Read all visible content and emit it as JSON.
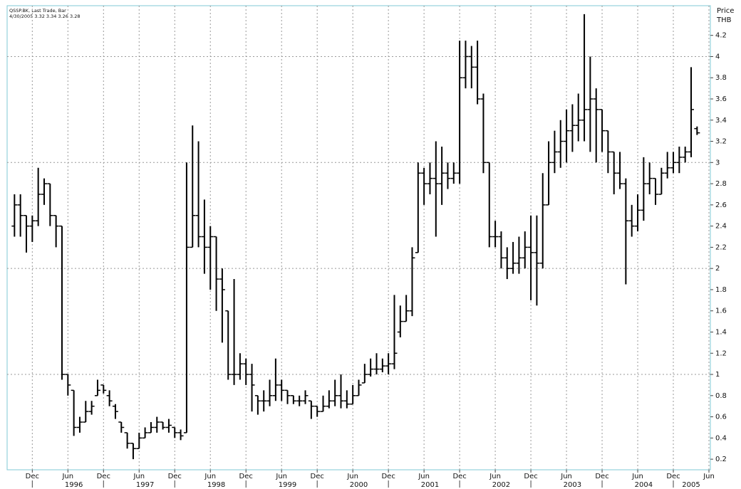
{
  "chart_data": {
    "type": "ohlc",
    "title": "QSSP.BK, Last Trade, Bar",
    "subtitle": "4/30/2005 3.32 3.34 3.26 3.28",
    "ylabel": "Price",
    "yunit": "THB",
    "color": "#000000",
    "grid": true,
    "x": [
      "1995-09",
      "1995-10",
      "1995-11",
      "1995-12",
      "1996-01",
      "1996-02",
      "1996-03",
      "1996-04",
      "1996-05",
      "1996-06",
      "1996-07",
      "1996-08",
      "1996-09",
      "1996-10",
      "1996-11",
      "1996-12",
      "1997-01",
      "1997-02",
      "1997-03",
      "1997-04",
      "1997-05",
      "1997-06",
      "1997-07",
      "1997-08",
      "1997-09",
      "1997-10",
      "1997-11",
      "1997-12",
      "1998-01",
      "1998-02",
      "1998-03",
      "1998-04",
      "1998-05",
      "1998-06",
      "1998-07",
      "1998-08",
      "1998-09",
      "1998-10",
      "1998-11",
      "1998-12",
      "1999-01",
      "1999-02",
      "1999-03",
      "1999-04",
      "1999-05",
      "1999-06",
      "1999-07",
      "1999-08",
      "1999-09",
      "1999-10",
      "1999-11",
      "1999-12",
      "2000-01",
      "2000-02",
      "2000-03",
      "2000-04",
      "2000-05",
      "2000-06",
      "2000-07",
      "2000-08",
      "2000-09",
      "2000-10",
      "2000-11",
      "2000-12",
      "2001-01",
      "2001-02",
      "2001-03",
      "2001-04",
      "2001-05",
      "2001-06",
      "2001-07",
      "2001-08",
      "2001-09",
      "2001-10",
      "2001-11",
      "2001-12",
      "2002-01",
      "2002-02",
      "2002-03",
      "2002-04",
      "2002-05",
      "2002-06",
      "2002-07",
      "2002-08",
      "2002-09",
      "2002-10",
      "2002-11",
      "2002-12",
      "2003-01",
      "2003-02",
      "2003-03",
      "2003-04",
      "2003-05",
      "2003-06",
      "2003-07",
      "2003-08",
      "2003-09",
      "2003-10",
      "2003-11",
      "2003-12",
      "2004-01",
      "2004-02",
      "2004-03",
      "2004-04",
      "2004-05",
      "2004-06",
      "2004-07",
      "2004-08",
      "2004-09",
      "2004-10",
      "2004-11",
      "2004-12",
      "2005-01",
      "2005-02",
      "2005-03",
      "2005-04"
    ],
    "open": [
      2.4,
      2.6,
      2.5,
      2.4,
      2.45,
      2.7,
      2.8,
      2.5,
      2.4,
      1.0,
      0.85,
      0.5,
      0.55,
      0.65,
      0.8,
      0.9,
      0.8,
      0.7,
      0.55,
      0.45,
      0.35,
      0.3,
      0.4,
      0.45,
      0.5,
      0.55,
      0.5,
      0.5,
      0.45,
      0.45,
      2.2,
      2.5,
      2.3,
      2.2,
      2.3,
      1.9,
      1.6,
      1.0,
      1.0,
      1.1,
      1.0,
      0.8,
      0.75,
      0.75,
      0.8,
      0.9,
      0.85,
      0.8,
      0.75,
      0.75,
      0.75,
      0.7,
      0.65,
      0.7,
      0.75,
      0.8,
      0.75,
      0.72,
      0.8,
      0.92,
      1.0,
      1.05,
      1.05,
      1.08,
      1.1,
      1.4,
      1.5,
      1.6,
      2.15,
      2.9,
      2.8,
      2.85,
      2.8,
      2.9,
      2.85,
      2.9,
      3.8,
      4.0,
      3.9,
      3.6,
      3.0,
      2.3,
      2.3,
      2.1,
      2.0,
      2.05,
      2.1,
      2.2,
      2.15,
      2.05,
      2.6,
      3.0,
      3.1,
      3.2,
      3.3,
      3.35,
      3.4,
      3.5,
      3.6,
      3.5,
      3.3,
      3.1,
      2.9,
      2.8,
      2.45,
      2.4,
      2.55,
      2.8,
      2.85,
      2.7,
      2.9,
      2.95,
      3.0,
      3.05,
      3.1,
      3.32
    ],
    "high": [
      2.7,
      2.7,
      2.5,
      2.5,
      2.95,
      2.85,
      2.8,
      2.5,
      2.4,
      1.0,
      0.85,
      0.6,
      0.75,
      0.75,
      0.95,
      0.9,
      0.85,
      0.72,
      0.55,
      0.45,
      0.35,
      0.45,
      0.5,
      0.55,
      0.6,
      0.55,
      0.58,
      0.5,
      0.48,
      3.0,
      3.35,
      3.2,
      2.65,
      2.4,
      2.3,
      2.0,
      1.6,
      1.9,
      1.2,
      1.15,
      1.1,
      0.8,
      0.85,
      0.95,
      1.15,
      0.95,
      0.85,
      0.8,
      0.8,
      0.85,
      0.75,
      0.7,
      0.8,
      0.85,
      0.95,
      1.0,
      0.85,
      0.9,
      0.95,
      1.1,
      1.15,
      1.2,
      1.15,
      1.2,
      1.75,
      1.65,
      1.75,
      2.2,
      3.0,
      2.95,
      3.0,
      3.2,
      3.15,
      3.0,
      3.0,
      4.15,
      4.15,
      4.1,
      4.15,
      3.65,
      3.0,
      2.45,
      2.35,
      2.2,
      2.25,
      2.3,
      2.35,
      2.5,
      2.5,
      2.9,
      3.2,
      3.3,
      3.4,
      3.5,
      3.55,
      3.65,
      4.4,
      4.0,
      3.7,
      3.5,
      3.3,
      3.1,
      3.1,
      2.85,
      2.6,
      2.7,
      3.05,
      3.0,
      2.85,
      2.95,
      3.1,
      3.1,
      3.15,
      3.15,
      3.9,
      3.34
    ],
    "low": [
      2.3,
      2.3,
      2.15,
      2.25,
      2.4,
      2.6,
      2.4,
      2.2,
      0.95,
      0.8,
      0.42,
      0.45,
      0.55,
      0.62,
      0.8,
      0.82,
      0.7,
      0.58,
      0.45,
      0.3,
      0.2,
      0.3,
      0.4,
      0.45,
      0.45,
      0.48,
      0.45,
      0.4,
      0.38,
      0.45,
      2.2,
      2.2,
      1.95,
      1.8,
      1.6,
      1.3,
      0.95,
      0.9,
      0.95,
      0.9,
      0.65,
      0.62,
      0.65,
      0.7,
      0.75,
      0.75,
      0.72,
      0.72,
      0.7,
      0.72,
      0.58,
      0.6,
      0.65,
      0.68,
      0.7,
      0.68,
      0.68,
      0.72,
      0.8,
      0.92,
      0.98,
      1.0,
      1.02,
      1.0,
      1.05,
      1.35,
      1.5,
      1.55,
      2.15,
      2.6,
      2.7,
      2.3,
      2.6,
      2.75,
      2.8,
      2.8,
      3.7,
      3.7,
      3.55,
      2.9,
      2.2,
      2.2,
      2.0,
      1.9,
      1.95,
      1.95,
      2.0,
      1.7,
      1.65,
      2.0,
      2.6,
      2.9,
      2.95,
      3.0,
      3.1,
      3.2,
      3.2,
      3.1,
      3.0,
      3.1,
      2.9,
      2.7,
      2.75,
      1.85,
      2.3,
      2.35,
      2.45,
      2.7,
      2.6,
      2.7,
      2.85,
      2.9,
      2.9,
      3.0,
      3.05,
      3.26
    ],
    "close": [
      2.6,
      2.5,
      2.4,
      2.45,
      2.7,
      2.8,
      2.5,
      2.4,
      1.0,
      0.9,
      0.5,
      0.55,
      0.65,
      0.7,
      0.85,
      0.85,
      0.75,
      0.65,
      0.5,
      0.35,
      0.3,
      0.4,
      0.45,
      0.5,
      0.55,
      0.5,
      0.52,
      0.45,
      0.42,
      2.2,
      2.5,
      2.3,
      2.2,
      2.3,
      1.9,
      1.8,
      1.0,
      1.0,
      1.1,
      1.0,
      0.9,
      0.75,
      0.75,
      0.8,
      0.9,
      0.85,
      0.8,
      0.75,
      0.75,
      0.8,
      0.7,
      0.65,
      0.7,
      0.75,
      0.8,
      0.75,
      0.72,
      0.8,
      0.9,
      1.0,
      1.05,
      1.05,
      1.08,
      1.1,
      1.2,
      1.5,
      1.6,
      2.1,
      2.9,
      2.8,
      2.85,
      2.8,
      2.9,
      2.85,
      2.9,
      3.8,
      4.0,
      3.9,
      3.6,
      3.0,
      2.3,
      2.3,
      2.1,
      2.0,
      2.05,
      2.1,
      2.2,
      2.15,
      2.05,
      2.6,
      3.0,
      3.1,
      3.2,
      3.3,
      3.35,
      3.4,
      3.5,
      3.6,
      3.5,
      3.3,
      3.1,
      2.9,
      2.8,
      2.45,
      2.4,
      2.55,
      2.8,
      2.85,
      2.7,
      2.9,
      2.95,
      3.0,
      3.05,
      3.1,
      3.5,
      3.28
    ],
    "xlim": [
      "1995-08",
      "2005-06"
    ],
    "xticks": [
      {
        "value": "1995-12",
        "label": "Dec"
      },
      {
        "value": "1996-06",
        "label": "Jun"
      },
      {
        "value": "1996-12",
        "label": "Dec"
      },
      {
        "value": "1997-06",
        "label": "Jun"
      },
      {
        "value": "1997-12",
        "label": "Dec"
      },
      {
        "value": "1998-06",
        "label": "Jun"
      },
      {
        "value": "1998-12",
        "label": "Dec"
      },
      {
        "value": "1999-06",
        "label": "Jun"
      },
      {
        "value": "1999-12",
        "label": "Dec"
      },
      {
        "value": "2000-06",
        "label": "Jun"
      },
      {
        "value": "2000-12",
        "label": "Dec"
      },
      {
        "value": "2001-06",
        "label": "Jun"
      },
      {
        "value": "2001-12",
        "label": "Dec"
      },
      {
        "value": "2002-06",
        "label": "Jun"
      },
      {
        "value": "2002-12",
        "label": "Dec"
      },
      {
        "value": "2003-06",
        "label": "Jun"
      },
      {
        "value": "2003-12",
        "label": "Dec"
      },
      {
        "value": "2004-06",
        "label": "Jun"
      },
      {
        "value": "2004-12",
        "label": "Dec"
      },
      {
        "value": "2005-06",
        "label": "Jun"
      }
    ],
    "xyears": [
      "1996",
      "1997",
      "1998",
      "1999",
      "2000",
      "2001",
      "2002",
      "2003",
      "2004",
      "2005"
    ],
    "ylim": [
      0.1,
      4.48
    ],
    "yticks": [
      0.2,
      0.4,
      0.6,
      0.8,
      1,
      1.2,
      1.4,
      1.6,
      1.8,
      2,
      2.2,
      2.4,
      2.6,
      2.8,
      3,
      3.2,
      3.4,
      3.6,
      3.8,
      4,
      4.2
    ]
  }
}
